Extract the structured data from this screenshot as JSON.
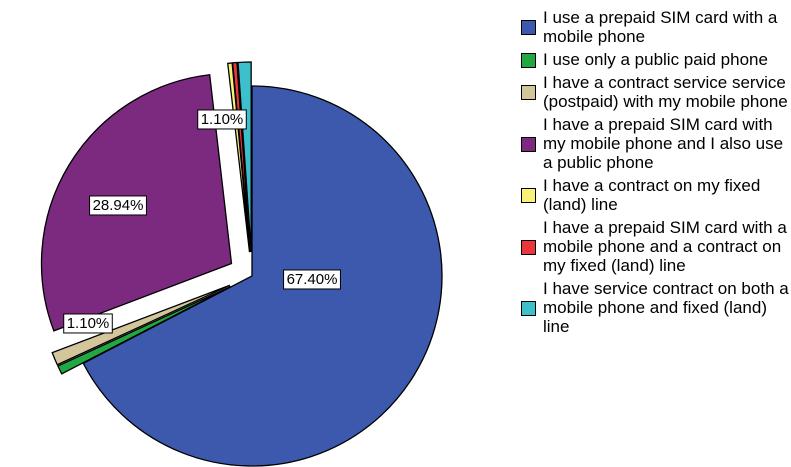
{
  "chart_data": {
    "type": "pie",
    "categories": [
      "I use a prepaid SIM card with a mobile phone",
      "I use only a public paid phone",
      "I have a contract service service (postpaid) with my mobile phone",
      "I have a prepaid SIM card with my mobile phone and I also use a public phone",
      "I have a contract on my fixed (land) line",
      "I have a prepaid SIM card with a mobile phone and a contract on my fixed (land) line",
      "I have service contract on both a mobile phone and fixed (land) line"
    ],
    "values": [
      67.4,
      0.73,
      1.1,
      28.94,
      0.37,
      0.36,
      1.1
    ],
    "value_labels": [
      "67.40%",
      null,
      "1.10%",
      "28.94%",
      null,
      null,
      "1.10%"
    ],
    "colors": [
      "#3c59ae",
      "#22a843",
      "#d3c69a",
      "#7b2a80",
      "#f7f27a",
      "#e8383b",
      "#3dbfcc"
    ],
    "legend": "right"
  }
}
